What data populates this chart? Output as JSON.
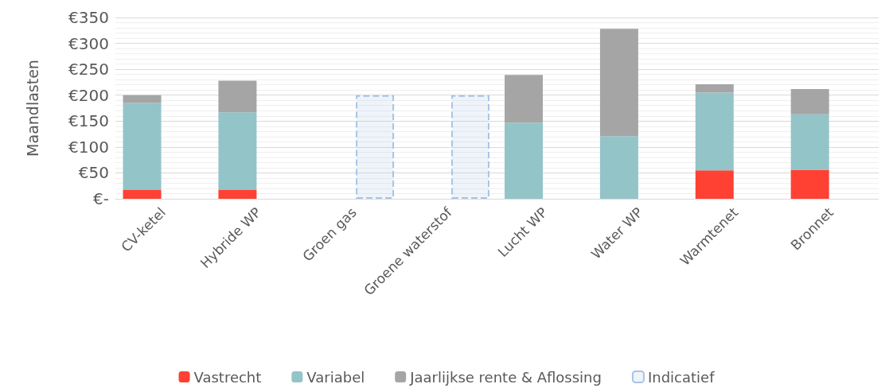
{
  "chart_data": {
    "type": "bar",
    "stacked": true,
    "ylabel": "Maandlasten",
    "categories": [
      "CV-ketel",
      "Hybride WP",
      "Groen gas",
      "Groene waterstof",
      "Lucht WP",
      "Water WP",
      "Warmtenet",
      "Bronnet"
    ],
    "series": [
      {
        "name": "Vastrecht",
        "color": "#ff4133",
        "values": [
          17,
          17,
          null,
          null,
          0,
          0,
          55,
          56
        ]
      },
      {
        "name": "Variabel",
        "color": "#93c4c8",
        "values": [
          168,
          150,
          null,
          null,
          147,
          121,
          150,
          107
        ]
      },
      {
        "name": "Jaarlijkse rente & Aflossing",
        "color": "#a5a5a5",
        "values": [
          15,
          61,
          null,
          null,
          92,
          207,
          16,
          49
        ]
      },
      {
        "name": "Indicatief",
        "color": "#a9c4e4",
        "line_style": "dashed",
        "values": [
          null,
          null,
          200,
          200,
          null,
          null,
          null,
          null
        ]
      }
    ],
    "ylim": [
      0,
      350
    ],
    "yticks": [
      {
        "value": 0,
        "label": "€-"
      },
      {
        "value": 50,
        "label": "€50"
      },
      {
        "value": 100,
        "label": "€100"
      },
      {
        "value": 150,
        "label": "€150"
      },
      {
        "value": 200,
        "label": "€200"
      },
      {
        "value": 250,
        "label": "€250"
      },
      {
        "value": 300,
        "label": "€300"
      },
      {
        "value": 350,
        "label": "€350"
      }
    ],
    "grid": "y",
    "legend": "bottom"
  }
}
